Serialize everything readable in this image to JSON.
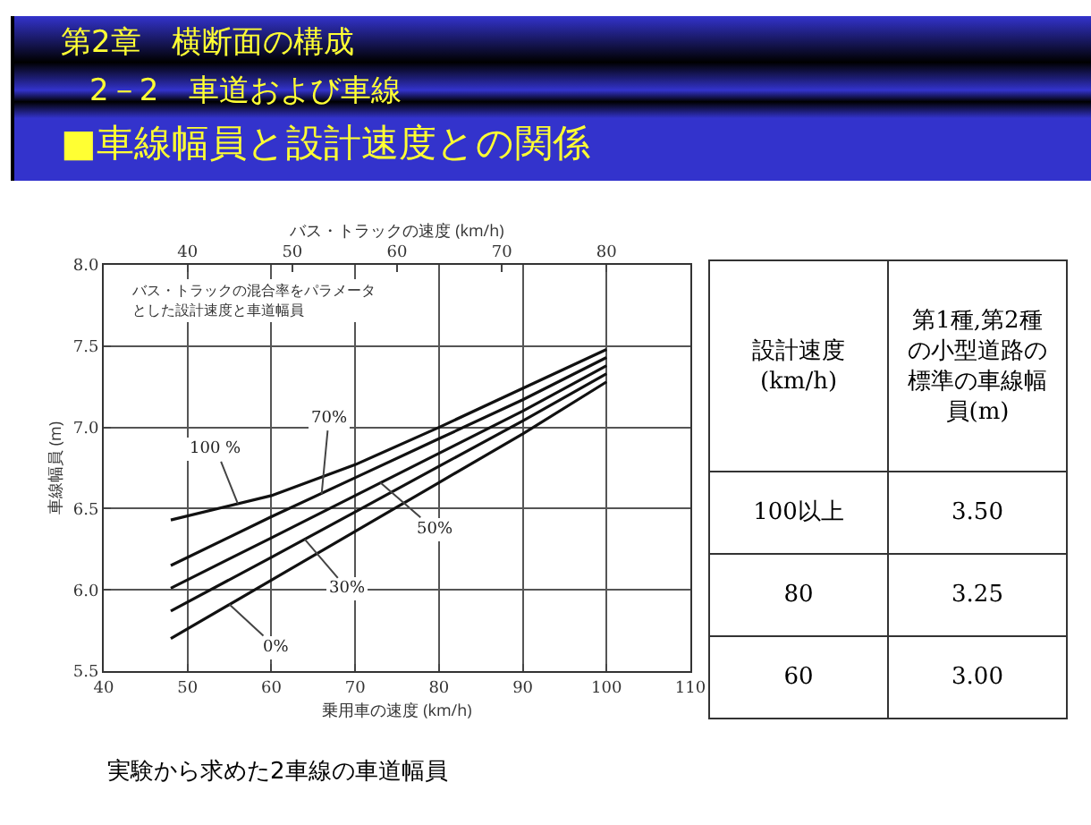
{
  "chart_data": [
    {
      "type": "line",
      "title": "第2章　横断面の構成",
      "subtitle": "2－2　車道および車線\n■車線幅員と設計速度との関係",
      "xlabel": "乗用車の速度 (km/h)",
      "x2label": "バス・トラックの速度 (km/h)",
      "ylabel": "車線幅員 (m)",
      "annotations": [
        "バス・トラックの混合率をパラメータとした設計速度と車道幅員",
        "実験から求めた2車線の車道幅員",
        {
          "text": "100 %",
          "x": 56,
          "y": 6.53
        },
        {
          "text": "70%",
          "x": 66,
          "y": 6.59
        },
        {
          "text": "50%",
          "x": 73,
          "y": 6.66
        },
        {
          "text": "30%",
          "x": 64,
          "y": 6.31
        },
        {
          "text": "0%",
          "x": 55,
          "y": 5.91
        }
      ],
      "x": [
        48,
        60,
        70,
        80,
        90,
        100
      ],
      "series": [
        {
          "color": "#111111",
          "values": [
            6.43,
            6.58,
            6.77,
            7.0,
            7.24,
            7.48
          ]
        },
        {
          "color": "#111111",
          "values": [
            6.15,
            6.45,
            6.69,
            6.93,
            7.17,
            7.43
          ]
        },
        {
          "color": "#111111",
          "values": [
            6.01,
            6.32,
            6.58,
            6.84,
            7.1,
            7.38
          ]
        },
        {
          "color": "#111111",
          "values": [
            5.87,
            6.2,
            6.48,
            6.76,
            7.04,
            7.33
          ]
        },
        {
          "color": "#111111",
          "values": [
            5.7,
            6.06,
            6.36,
            6.66,
            6.96,
            7.28
          ]
        }
      ],
      "xlim": [
        40,
        110
      ],
      "xticks": [
        40,
        50,
        60,
        70,
        80,
        90,
        100,
        110
      ],
      "x2lim": [
        32,
        88
      ],
      "x2ticks": [
        40,
        50,
        60,
        70,
        80
      ],
      "ylim": [
        5.5,
        8.0
      ],
      "yticks": [
        5.5,
        {
          "value": 6,
          "label": "6.0"
        },
        6.5,
        {
          "value": 7,
          "label": "7.0"
        },
        7.5,
        {
          "value": 8,
          "label": "8.0"
        }
      ],
      "grid": true,
      "legend": false,
      "marker": "none",
      "line_style": "solid"
    },
    {
      "type": "other",
      "annotations": [
        "設計速度(km/h)",
        "第1種,第2種の小型道路の標準の車線幅員(m)",
        "100以上",
        "3.50",
        "80",
        "3.25",
        "60",
        "3.00"
      ]
    }
  ]
}
